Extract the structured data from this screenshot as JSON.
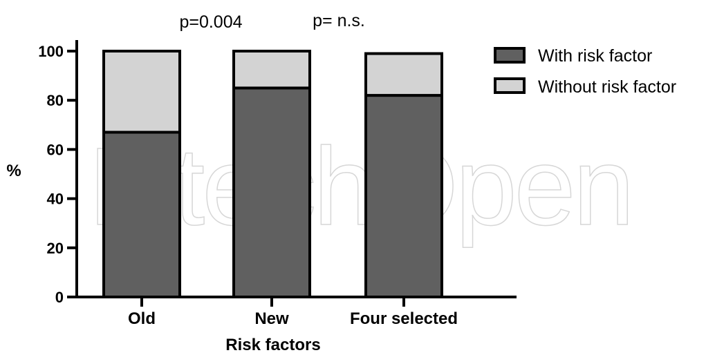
{
  "chart_data": {
    "type": "bar",
    "stacked": true,
    "title": "",
    "xlabel": "Risk factors",
    "ylabel": "%",
    "ylim": [
      0,
      100
    ],
    "yticks": [
      "0",
      "20",
      "40",
      "60",
      "80",
      "100"
    ],
    "categories": [
      "Old",
      "New",
      "Four selected"
    ],
    "series": [
      {
        "name": "With risk factor",
        "values": [
          67,
          85,
          82
        ],
        "color": "#606060"
      },
      {
        "name": "Without risk factor",
        "values": [
          33,
          15,
          17
        ],
        "color": "#d3d3d3"
      }
    ],
    "annotations": [
      "p=0.004",
      "p= n.s."
    ],
    "legend_position": "top-right",
    "grid": false
  },
  "watermark": {
    "text": "IntechOpen"
  }
}
